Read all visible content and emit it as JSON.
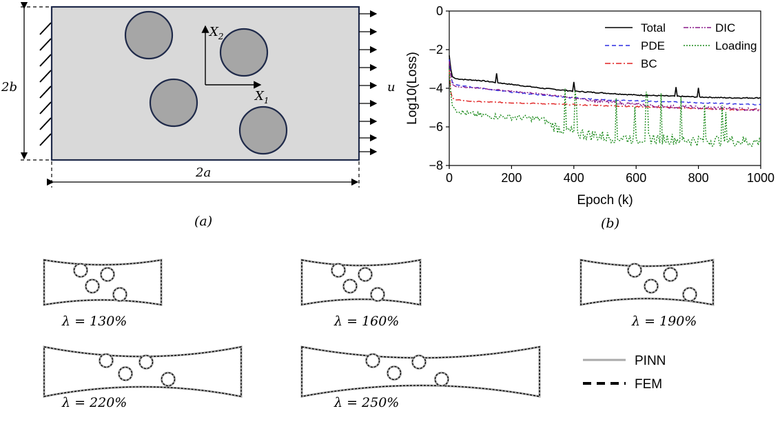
{
  "panel_a": {
    "caption": "(a)",
    "label_x2": "X",
    "label_x2_sub": "2",
    "label_x1": "X",
    "label_x1_sub": "1",
    "label_2b": "2b",
    "label_2a": "2a",
    "label_u": "u"
  },
  "panel_b": {
    "caption": "(b)"
  },
  "chart_data": {
    "type": "line",
    "xlabel": "Epoch (k)",
    "ylabel": "Log10(Loss)",
    "xlim": [
      0,
      1000
    ],
    "ylim": [
      -8,
      0
    ],
    "xticks": [
      "0",
      "200",
      "400",
      "600",
      "800",
      "1000"
    ],
    "yticks": [
      "0",
      "−2",
      "−4",
      "−6",
      "−8"
    ],
    "legend_position": "top-right",
    "series": [
      {
        "name": "Total",
        "color": "#000000",
        "style": "solid",
        "x": [
          0,
          5,
          10,
          20,
          50,
          100,
          200,
          300,
          400,
          500,
          600,
          700,
          800,
          900,
          1000
        ],
        "y": [
          -2.3,
          -3.0,
          -3.4,
          -3.5,
          -3.55,
          -3.6,
          -3.8,
          -4.0,
          -4.15,
          -4.25,
          -4.35,
          -4.4,
          -4.45,
          -4.5,
          -4.5
        ]
      },
      {
        "name": "PDE",
        "color": "#2a2ae0",
        "style": "dashed",
        "x": [
          0,
          5,
          10,
          20,
          50,
          100,
          200,
          300,
          400,
          500,
          600,
          700,
          800,
          900,
          1000
        ],
        "y": [
          -2.5,
          -3.3,
          -3.7,
          -3.8,
          -3.9,
          -4.0,
          -4.2,
          -4.35,
          -4.5,
          -4.6,
          -4.65,
          -4.7,
          -4.75,
          -4.8,
          -4.85
        ]
      },
      {
        "name": "BC",
        "color": "#e02020",
        "style": "dashdot",
        "x": [
          0,
          5,
          10,
          20,
          50,
          100,
          200,
          300,
          400,
          500,
          600,
          700,
          800,
          900,
          1000
        ],
        "y": [
          -3.0,
          -4.2,
          -4.5,
          -4.6,
          -4.65,
          -4.7,
          -4.75,
          -4.8,
          -4.85,
          -4.9,
          -4.95,
          -5.0,
          -5.05,
          -5.1,
          -5.1
        ]
      },
      {
        "name": "DIC",
        "color": "#8a1a8a",
        "style": "dashdotdot",
        "x": [
          0,
          5,
          10,
          20,
          50,
          100,
          200,
          300,
          400,
          500,
          600,
          700,
          800,
          900,
          1000
        ],
        "y": [
          -2.6,
          -3.3,
          -3.8,
          -3.9,
          -3.95,
          -4.0,
          -4.15,
          -4.3,
          -4.5,
          -4.7,
          -4.85,
          -4.95,
          -5.0,
          -5.05,
          -5.1
        ]
      },
      {
        "name": "Loading",
        "color": "#1a8a1a",
        "style": "dotted",
        "x": [
          0,
          5,
          10,
          20,
          50,
          100,
          200,
          300,
          340,
          400,
          500,
          600,
          700,
          800,
          900,
          1000
        ],
        "y": [
          -3.0,
          -4.3,
          -4.9,
          -5.1,
          -5.3,
          -5.4,
          -5.5,
          -5.6,
          -6.0,
          -6.3,
          -6.5,
          -6.6,
          -6.6,
          -6.7,
          -6.7,
          -6.8
        ]
      }
    ]
  },
  "deformed": {
    "items": [
      {
        "label": "λ = 130%"
      },
      {
        "label": "λ = 160%"
      },
      {
        "label": "λ = 190%"
      },
      {
        "label": "λ = 220%"
      },
      {
        "label": "λ = 250%"
      }
    ],
    "legend": [
      {
        "name": "PINN",
        "color": "#aaaaaa",
        "style": "solid"
      },
      {
        "name": "FEM",
        "color": "#000000",
        "style": "dashed"
      }
    ]
  }
}
